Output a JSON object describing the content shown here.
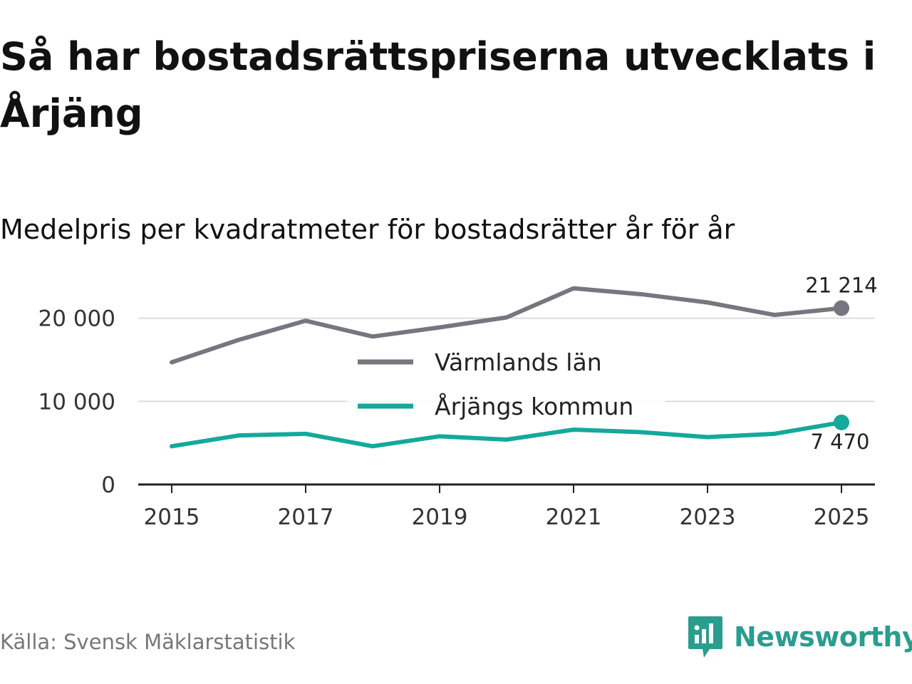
{
  "title": "Så har bostadsrättspriserna utvecklats i Årjäng",
  "subtitle": "Medelpris per kvadratmeter för bostadsrätter år för år",
  "source": "Källa: Svensk Mäklarstatistik",
  "brand": "Newsworthy",
  "colors": {
    "county": "#77767f",
    "municipality": "#13a99b",
    "grid": "#dddddd",
    "axis": "#222222",
    "brand": "#2a9d8f"
  },
  "chart_data": {
    "type": "line",
    "title": "Medelpris per kvadratmeter för bostadsrätter år för år",
    "xlabel": "",
    "ylabel": "",
    "x": [
      2015,
      2016,
      2017,
      2018,
      2019,
      2020,
      2021,
      2022,
      2023,
      2024,
      2025
    ],
    "x_ticks": [
      "2015",
      "2017",
      "2019",
      "2021",
      "2023",
      "2025"
    ],
    "y_ticks": [
      0,
      10000,
      20000
    ],
    "y_tick_labels": [
      "0",
      "10 000",
      "20 000"
    ],
    "xlim": [
      2014.5,
      2025.5
    ],
    "ylim": [
      0,
      24000
    ],
    "grid": true,
    "legend_position": "center",
    "series": [
      {
        "name": "Värmlands län",
        "values": [
          14700,
          17400,
          19700,
          17800,
          18900,
          20100,
          23600,
          22900,
          21900,
          20400,
          21214
        ],
        "end_label": "21 214"
      },
      {
        "name": "Årjängs kommun",
        "values": [
          4600,
          5900,
          6100,
          4600,
          5800,
          5400,
          6600,
          6300,
          5700,
          6100,
          7470
        ],
        "end_label": "7 470"
      }
    ]
  }
}
